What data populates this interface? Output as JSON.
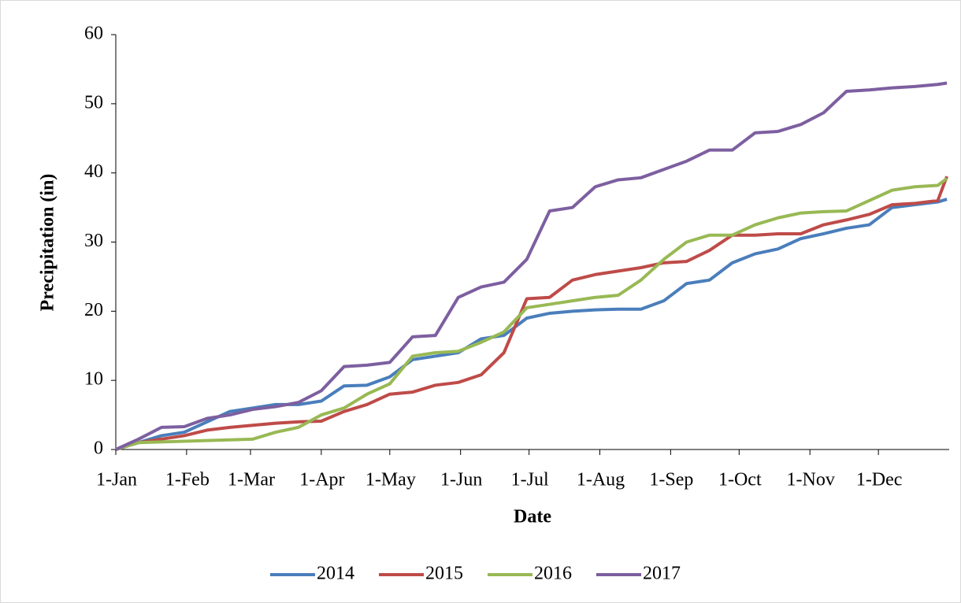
{
  "chart_data": {
    "type": "line",
    "xlabel": "Date",
    "ylabel": "Precipitation (in)",
    "x": [
      1,
      11,
      21,
      31,
      41,
      51,
      61,
      71,
      81,
      91,
      101,
      111,
      121,
      131,
      141,
      151,
      161,
      171,
      181,
      191,
      201,
      211,
      221,
      231,
      241,
      251,
      261,
      271,
      281,
      291,
      301,
      311,
      321,
      331,
      341,
      351,
      361,
      365
    ],
    "series": [
      {
        "name": "2014",
        "color": "#4a7ebb",
        "values": [
          0,
          1,
          2,
          2.5,
          4,
          5.5,
          6,
          6.5,
          6.5,
          7,
          9.2,
          9.3,
          10.5,
          13,
          13.5,
          14,
          16,
          16.5,
          19,
          19.7,
          20,
          20.2,
          20.3,
          20.3,
          21.5,
          24,
          24.5,
          27,
          28.3,
          29,
          30.5,
          31.2,
          32,
          32.5,
          35,
          35.4,
          35.8,
          36.2
        ]
      },
      {
        "name": "2015",
        "color": "#be4b48",
        "values": [
          0,
          1,
          1.5,
          2,
          2.8,
          3.2,
          3.5,
          3.8,
          4,
          4.1,
          5.5,
          6.5,
          8,
          8.3,
          9.3,
          9.7,
          10.8,
          14,
          21.8,
          22,
          24.5,
          25.3,
          25.8,
          26.3,
          27,
          27.2,
          28.8,
          31,
          31,
          31.2,
          31.2,
          32.5,
          33.2,
          34,
          35.4,
          35.6,
          36,
          39.5
        ]
      },
      {
        "name": "2016",
        "color": "#98b954",
        "values": [
          0,
          1,
          1.1,
          1.2,
          1.3,
          1.4,
          1.5,
          2.5,
          3.2,
          5,
          6,
          8,
          9.5,
          13.5,
          14,
          14.2,
          15.5,
          17,
          20.5,
          21,
          21.5,
          22,
          22.3,
          24.5,
          27.5,
          30,
          31,
          31,
          32.5,
          33.5,
          34.2,
          34.4,
          34.5,
          36,
          37.5,
          38,
          38.2,
          39.2
        ]
      },
      {
        "name": "2017",
        "color": "#7d5fa0",
        "values": [
          0,
          1.5,
          3.2,
          3.3,
          4.5,
          5,
          5.8,
          6.2,
          6.8,
          8.5,
          12,
          12.2,
          12.6,
          16.3,
          16.5,
          22,
          23.5,
          24.2,
          27.5,
          34.5,
          35,
          38,
          39,
          39.3,
          40.5,
          41.7,
          43.3,
          43.3,
          45.8,
          46,
          47,
          48.7,
          51.8,
          52,
          52.3,
          52.5,
          52.8,
          53
        ]
      }
    ],
    "xlim": [
      1,
      366
    ],
    "xticks": [
      {
        "value": 1,
        "label": "1-Jan"
      },
      {
        "value": 32,
        "label": "1-Feb"
      },
      {
        "value": 60,
        "label": "1-Mar"
      },
      {
        "value": 91,
        "label": "1-Apr"
      },
      {
        "value": 121,
        "label": "1-May"
      },
      {
        "value": 152,
        "label": "1-Jun"
      },
      {
        "value": 182,
        "label": "1-Jul"
      },
      {
        "value": 213,
        "label": "1-Aug"
      },
      {
        "value": 244,
        "label": "1-Sep"
      },
      {
        "value": 274,
        "label": "1-Oct"
      },
      {
        "value": 305,
        "label": "1-Nov"
      },
      {
        "value": 335,
        "label": "1-Dec"
      }
    ],
    "ylim": [
      0,
      60
    ],
    "yticks": [
      0,
      10,
      20,
      30,
      40,
      50,
      60
    ],
    "grid": false,
    "legend": "bottom"
  }
}
